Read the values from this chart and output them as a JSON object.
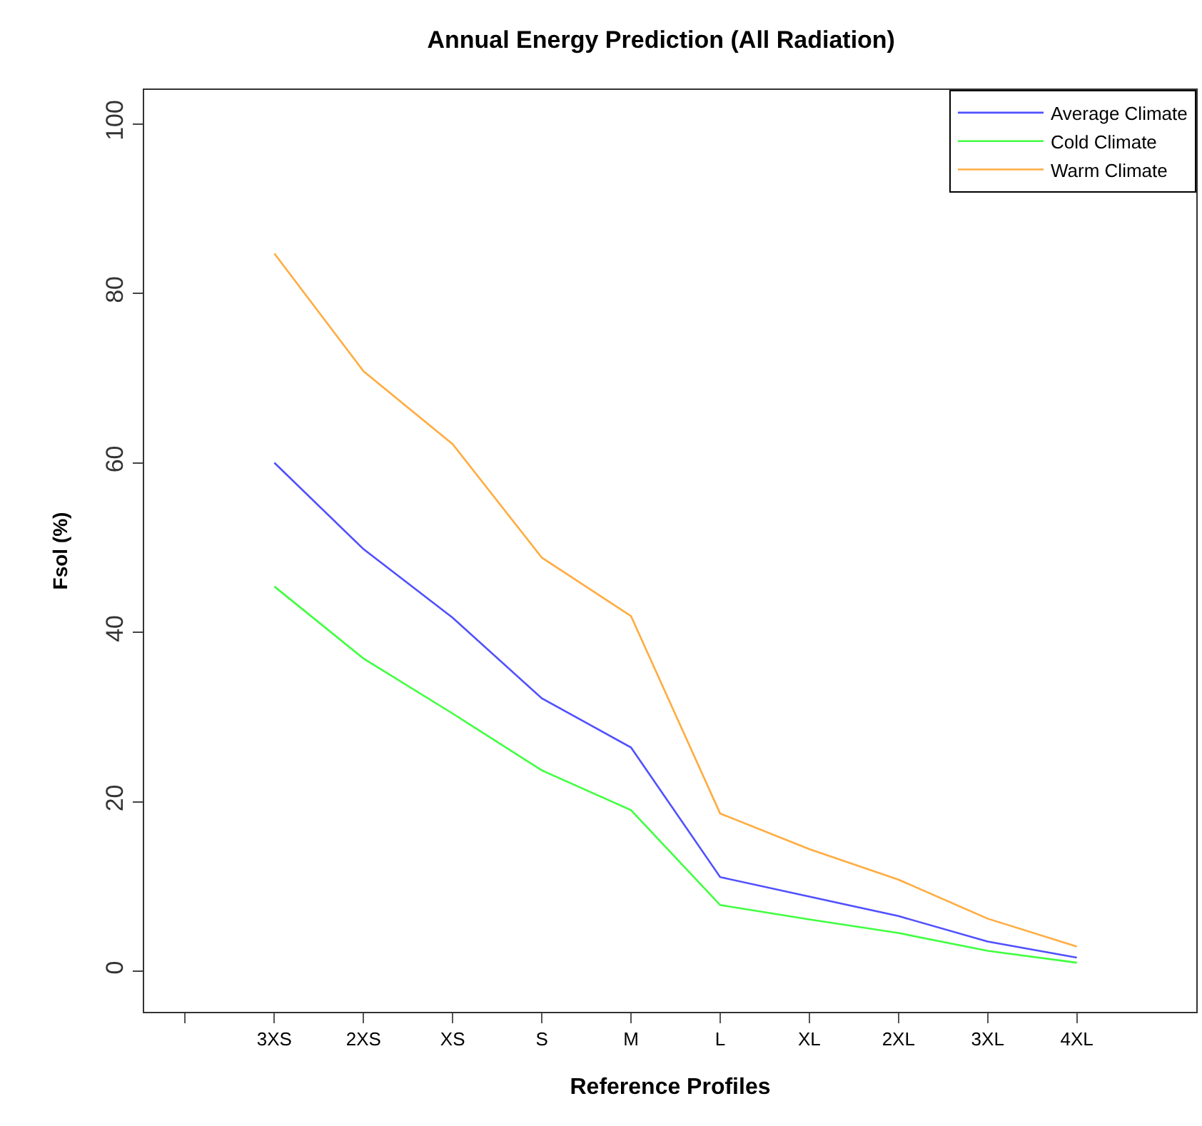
{
  "chart_data": {
    "type": "line",
    "title": "Annual Energy Prediction (All Radiation)",
    "xlabel": "Reference Profiles",
    "ylabel": "Fsol (%)",
    "categories": [
      null,
      "3XS",
      "2XS",
      "XS",
      "S",
      "M",
      "L",
      "XL",
      "2XL",
      "3XL",
      "4XL"
    ],
    "series": [
      {
        "name": "Average Climate",
        "color": "#5050ff",
        "values": [
          null,
          60.0,
          49.8,
          41.7,
          32.2,
          26.4,
          11.1,
          8.8,
          6.5,
          3.5,
          1.6
        ]
      },
      {
        "name": "Cold Climate",
        "color": "#40ff40",
        "values": [
          null,
          45.4,
          36.9,
          30.4,
          23.7,
          19.0,
          7.8,
          6.1,
          4.5,
          2.4,
          1.0
        ]
      },
      {
        "name": "Warm Climate",
        "color": "#ffac40",
        "values": [
          null,
          84.7,
          70.8,
          62.2,
          48.8,
          41.9,
          18.6,
          14.4,
          10.8,
          6.2,
          2.9
        ]
      }
    ],
    "ylim": [
      -4.8,
      104
    ],
    "yticks": [
      0,
      20,
      40,
      60,
      80,
      100
    ],
    "legend": "top right",
    "marker": "none",
    "line_style": "solid"
  }
}
